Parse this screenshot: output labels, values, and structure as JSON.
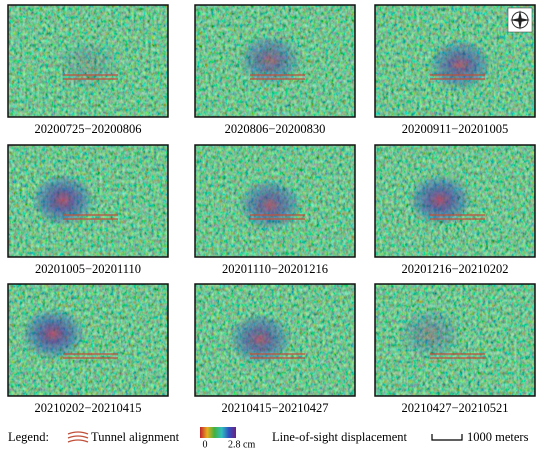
{
  "panels": [
    {
      "label": "20200725−20200806"
    },
    {
      "label": "2020806−20200830"
    },
    {
      "label": "20200911−20201005"
    },
    {
      "label": "20201005−20201110"
    },
    {
      "label": "20201110−20201216"
    },
    {
      "label": "20201216−20210202"
    },
    {
      "label": "20210202−20210415"
    },
    {
      "label": "20210415−20210427"
    },
    {
      "label": "20210427−20210521"
    }
  ],
  "legend": {
    "title": "Legend:",
    "tunnel": "Tunnel alignment",
    "scale_min": "0",
    "scale_max": "2.8 cm",
    "scale_title": "Line-of-sight displacement",
    "distance": "1000 meters"
  }
}
